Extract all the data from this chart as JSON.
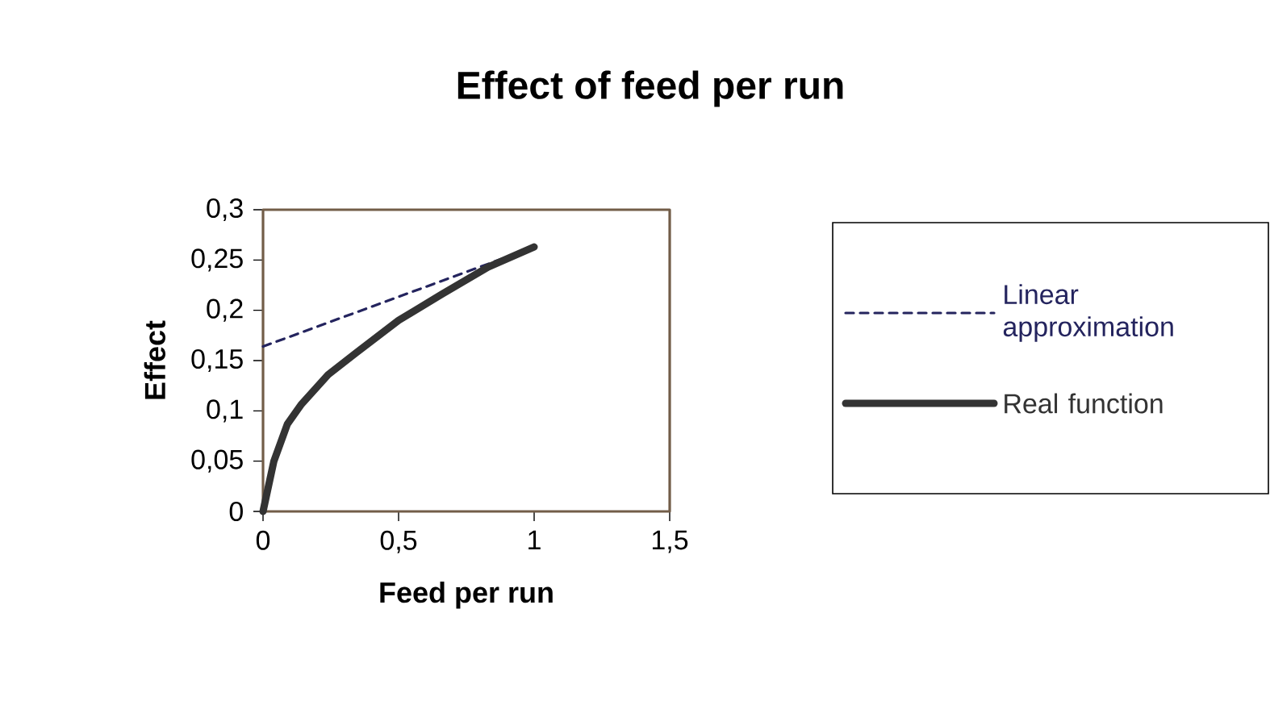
{
  "chart_data": {
    "type": "line",
    "title": "Effect of feed per run",
    "xlabel": "Feed per run",
    "ylabel": "Effect",
    "xlim": [
      0,
      1.5
    ],
    "ylim": [
      0,
      0.3
    ],
    "xticks": [
      0,
      {
        "value": 0.5,
        "label": "0,5"
      },
      1,
      {
        "value": 1.5,
        "label": "1,5"
      }
    ],
    "yticks": [
      0,
      {
        "value": 0.05,
        "label": "0,05"
      },
      {
        "value": 0.1,
        "label": "0,1"
      },
      {
        "value": 0.15,
        "label": "0,15"
      },
      {
        "value": 0.2,
        "label": "0,2"
      },
      {
        "value": 0.25,
        "label": "0,25"
      },
      {
        "value": 0.3,
        "label": "0,3"
      }
    ],
    "legend": "right",
    "series": [
      {
        "name": "Linear approximation",
        "color": "#24245e",
        "line_style": "dashed",
        "x": [
          0,
          0.92
        ],
        "values": [
          0.164,
          0.255
        ]
      },
      {
        "name": "Real function",
        "color": "#333333",
        "line_style": "solid",
        "x": [
          0,
          0.04,
          0.09,
          0.14,
          0.24,
          0.34,
          0.5,
          0.66,
          0.83,
          1.0
        ],
        "values": [
          0,
          0.05,
          0.087,
          0.106,
          0.136,
          0.157,
          0.19,
          0.216,
          0.243,
          0.263
        ]
      }
    ]
  }
}
